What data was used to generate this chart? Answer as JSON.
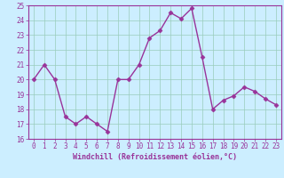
{
  "x": [
    0,
    1,
    2,
    3,
    4,
    5,
    6,
    7,
    8,
    9,
    10,
    11,
    12,
    13,
    14,
    15,
    16,
    17,
    18,
    19,
    20,
    21,
    22,
    23
  ],
  "y": [
    20,
    21,
    20,
    17.5,
    17,
    17.5,
    17,
    16.5,
    20,
    20,
    21,
    22.8,
    23.3,
    24.5,
    24.1,
    24.8,
    21.5,
    18,
    18.6,
    18.9,
    19.5,
    19.2,
    18.7,
    18.3
  ],
  "line_color": "#993399",
  "marker": "D",
  "markersize": 2.5,
  "linewidth": 1.0,
  "bg_color": "#cceeff",
  "grid_color": "#99ccbb",
  "xlabel": "Windchill (Refroidissement éolien,°C)",
  "xlabel_color": "#993399",
  "tick_color": "#993399",
  "spine_color": "#993399",
  "ylim": [
    16,
    25
  ],
  "xlim": [
    -0.5,
    23.5
  ],
  "yticks": [
    16,
    17,
    18,
    19,
    20,
    21,
    22,
    23,
    24,
    25
  ],
  "xticks": [
    0,
    1,
    2,
    3,
    4,
    5,
    6,
    7,
    8,
    9,
    10,
    11,
    12,
    13,
    14,
    15,
    16,
    17,
    18,
    19,
    20,
    21,
    22,
    23
  ],
  "tick_fontsize": 5.5,
  "xlabel_fontsize": 6.0
}
